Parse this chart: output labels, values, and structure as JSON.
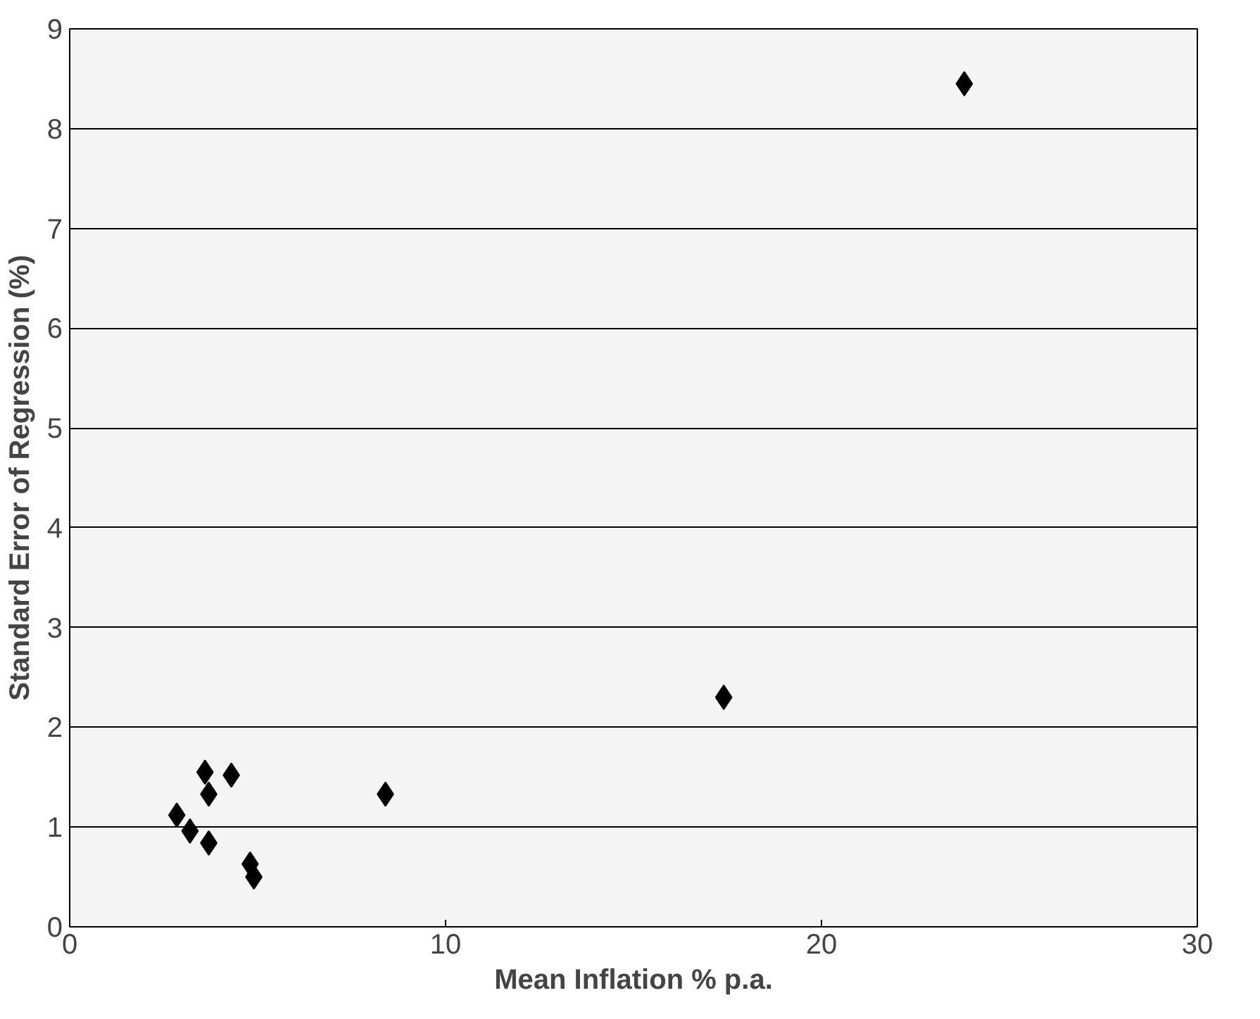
{
  "chart_data": {
    "type": "scatter",
    "xlabel": "Mean Inflation % p.a.",
    "ylabel": "Standard Error of Regression (%)",
    "x": [
      3.6,
      4.3,
      3.7,
      2.85,
      3.2,
      3.7,
      4.8,
      4.9,
      8.4,
      17.4,
      23.8
    ],
    "values": [
      1.55,
      1.52,
      1.33,
      1.12,
      0.96,
      0.84,
      0.63,
      0.5,
      1.33,
      2.3,
      8.45
    ],
    "color": "#000000",
    "marker": "diamond",
    "xlim": [
      0,
      30
    ],
    "xticks": [
      0,
      10,
      20,
      30
    ],
    "ylim": [
      0,
      9
    ],
    "yticks": [
      0,
      1,
      2,
      3,
      4,
      5,
      6,
      7,
      8,
      9
    ],
    "grid": "y"
  }
}
